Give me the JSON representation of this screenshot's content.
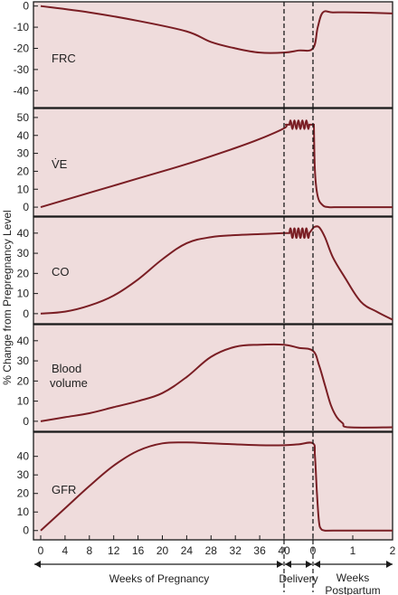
{
  "chart_data": {
    "type": "line",
    "ylabel": "% Change from Prepregnancy Level",
    "colors": {
      "background": "#efdcdc",
      "line": "#7a1e24",
      "frame": "#1a1a1a"
    },
    "x_axis": {
      "pregnancy_ticks": [
        "0",
        "4",
        "8",
        "12",
        "16",
        "20",
        "24",
        "28",
        "32",
        "36",
        "40"
      ],
      "postpartum_ticks": [
        "0",
        "1",
        "2"
      ],
      "delivery_marker_ticks": [
        "40",
        "0"
      ],
      "sections": [
        {
          "label": "Weeks of Pregnancy"
        },
        {
          "label": "Delivery"
        },
        {
          "label": "Weeks\nPostpartum"
        }
      ]
    },
    "panels": [
      {
        "id": "frc",
        "label": "FRC",
        "ylim": [
          -48,
          2
        ],
        "yticks": [
          0,
          -10,
          -20,
          -30,
          -40
        ],
        "pregnancy": {
          "weeks": [
            0,
            8,
            16,
            24,
            28,
            32,
            36,
            40
          ],
          "values": [
            0,
            -3,
            -7,
            -12,
            -17,
            -20,
            -22,
            -22
          ]
        },
        "delivery": {
          "values": [
            -22,
            -20
          ]
        },
        "postpartum": {
          "weeks": [
            0,
            0.12,
            0.25,
            0.5,
            1,
            2
          ],
          "values": [
            -20,
            -10,
            -3,
            -3,
            -3,
            -3.5
          ]
        }
      },
      {
        "id": "ve",
        "label": "V̇E",
        "ylim": [
          -5,
          55
        ],
        "yticks": [
          0,
          10,
          20,
          30,
          40,
          50
        ],
        "pregnancy": {
          "weeks": [
            0,
            8,
            16,
            24,
            32,
            36,
            40
          ],
          "values": [
            0,
            8,
            16,
            24,
            33,
            38,
            44
          ]
        },
        "delivery": {
          "values": [
            46,
            46
          ],
          "oscillation": {
            "amplitude": 3,
            "cycles": 5
          }
        },
        "postpartum": {
          "weeks": [
            0,
            0.05,
            0.12,
            0.25,
            0.4,
            0.6,
            0.8,
            2
          ],
          "values": [
            46,
            20,
            6,
            1,
            0,
            0,
            0,
            0
          ]
        }
      },
      {
        "id": "co",
        "label": "CO",
        "ylim": [
          -5,
          48
        ],
        "yticks": [
          0,
          10,
          20,
          30,
          40
        ],
        "pregnancy": {
          "weeks": [
            0,
            4,
            8,
            12,
            16,
            20,
            24,
            28,
            32,
            36,
            40
          ],
          "values": [
            0,
            1,
            4,
            9,
            17,
            27,
            35,
            38,
            39,
            39.5,
            40
          ]
        },
        "delivery": {
          "values": [
            40,
            40
          ],
          "oscillation": {
            "amplitude": 3,
            "cycles": 5
          }
        },
        "postpartum": {
          "weeks": [
            0,
            0.15,
            0.3,
            0.5,
            0.8,
            1.2,
            1.6,
            2
          ],
          "values": [
            43,
            43,
            38,
            28,
            18,
            6,
            1,
            -3
          ]
        }
      },
      {
        "id": "blood-volume",
        "label": [
          "Blood",
          "volume"
        ],
        "ylim": [
          -5,
          48
        ],
        "yticks": [
          0,
          10,
          20,
          30,
          40
        ],
        "pregnancy": {
          "weeks": [
            0,
            4,
            8,
            12,
            16,
            20,
            24,
            28,
            32,
            36,
            40
          ],
          "values": [
            0,
            2,
            4,
            7,
            10,
            14,
            22,
            32,
            37,
            38,
            38
          ]
        },
        "delivery": {
          "values": [
            38,
            35
          ]
        },
        "postpartum": {
          "weeks": [
            0,
            0.15,
            0.3,
            0.45,
            0.6,
            0.75,
            0.9,
            2
          ],
          "values": [
            35,
            28,
            18,
            8,
            2,
            -1,
            -3,
            -3
          ]
        }
      },
      {
        "id": "gfr",
        "label": "GFR",
        "ylim": [
          -5,
          53
        ],
        "yticks": [
          0,
          10,
          20,
          30,
          40
        ],
        "pregnancy": {
          "weeks": [
            0,
            4,
            8,
            12,
            16,
            20,
            24,
            28,
            32,
            36,
            40
          ],
          "values": [
            0,
            12,
            24,
            35,
            43,
            47,
            47.5,
            47,
            46.5,
            46,
            46
          ]
        },
        "delivery": {
          "values": [
            46,
            47
          ]
        },
        "postpartum": {
          "weeks": [
            0,
            0.05,
            0.1,
            0.15,
            0.2,
            0.3,
            0.5,
            2
          ],
          "values": [
            47,
            40,
            20,
            5,
            1,
            0,
            0,
            0
          ]
        }
      }
    ]
  }
}
